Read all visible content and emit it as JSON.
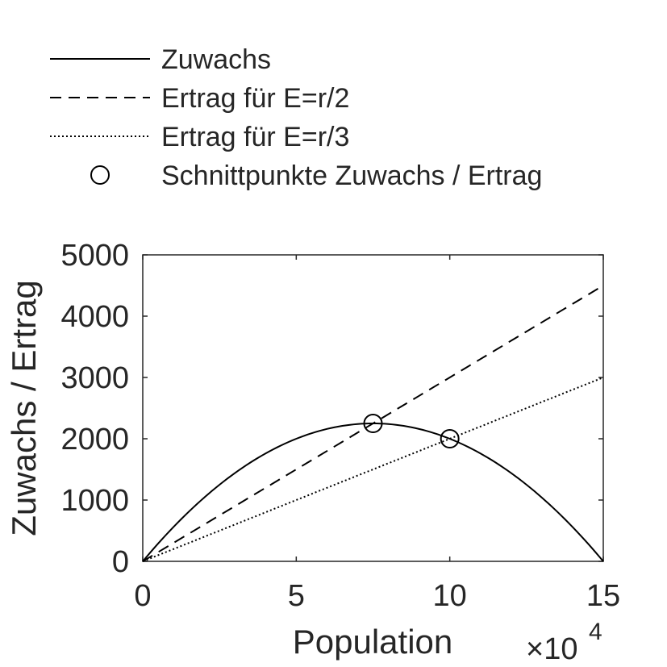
{
  "chart_data": {
    "type": "line",
    "title": "",
    "xlabel": "Population",
    "ylabel": "Zuwachs / Ertrag",
    "x_scale_label": "×10",
    "x_scale_exponent": "4",
    "x_scale_factor": 10000,
    "xlim": [
      0,
      15
    ],
    "ylim": [
      0,
      5000
    ],
    "x_ticks": [
      0,
      5,
      10,
      15
    ],
    "x_tick_labels": [
      "0",
      "5",
      "10",
      "15"
    ],
    "y_ticks": [
      0,
      1000,
      2000,
      3000,
      4000,
      5000
    ],
    "y_tick_labels": [
      "0",
      "1000",
      "2000",
      "3000",
      "4000",
      "5000"
    ],
    "grid": false,
    "legend_position": "top, outside plot",
    "x": [
      0,
      1.5,
      3,
      4.5,
      6,
      7.5,
      9,
      10.5,
      12,
      13.5,
      15
    ],
    "series": [
      {
        "name": "Zuwachs",
        "style": "solid",
        "color": "#000000",
        "values": [
          0,
          810,
          1440,
          1890,
          2160,
          2250,
          2160,
          1890,
          1440,
          810,
          0
        ]
      },
      {
        "name": "Ertrag für E=r/2",
        "style": "dashed",
        "color": "#000000",
        "values": [
          0,
          450,
          900,
          1350,
          1800,
          2250,
          2700,
          3150,
          3600,
          4050,
          4500
        ]
      },
      {
        "name": "Ertrag für E=r/3",
        "style": "dotted",
        "color": "#000000",
        "values": [
          0,
          300,
          600,
          900,
          1200,
          1500,
          1800,
          2100,
          2400,
          2700,
          3000
        ]
      }
    ],
    "markers": {
      "name": "Schnittpunkte Zuwachs / Ertrag",
      "symbol": "circle",
      "points": [
        {
          "x": 7.5,
          "y": 2250
        },
        {
          "x": 10,
          "y": 2000
        }
      ]
    }
  }
}
